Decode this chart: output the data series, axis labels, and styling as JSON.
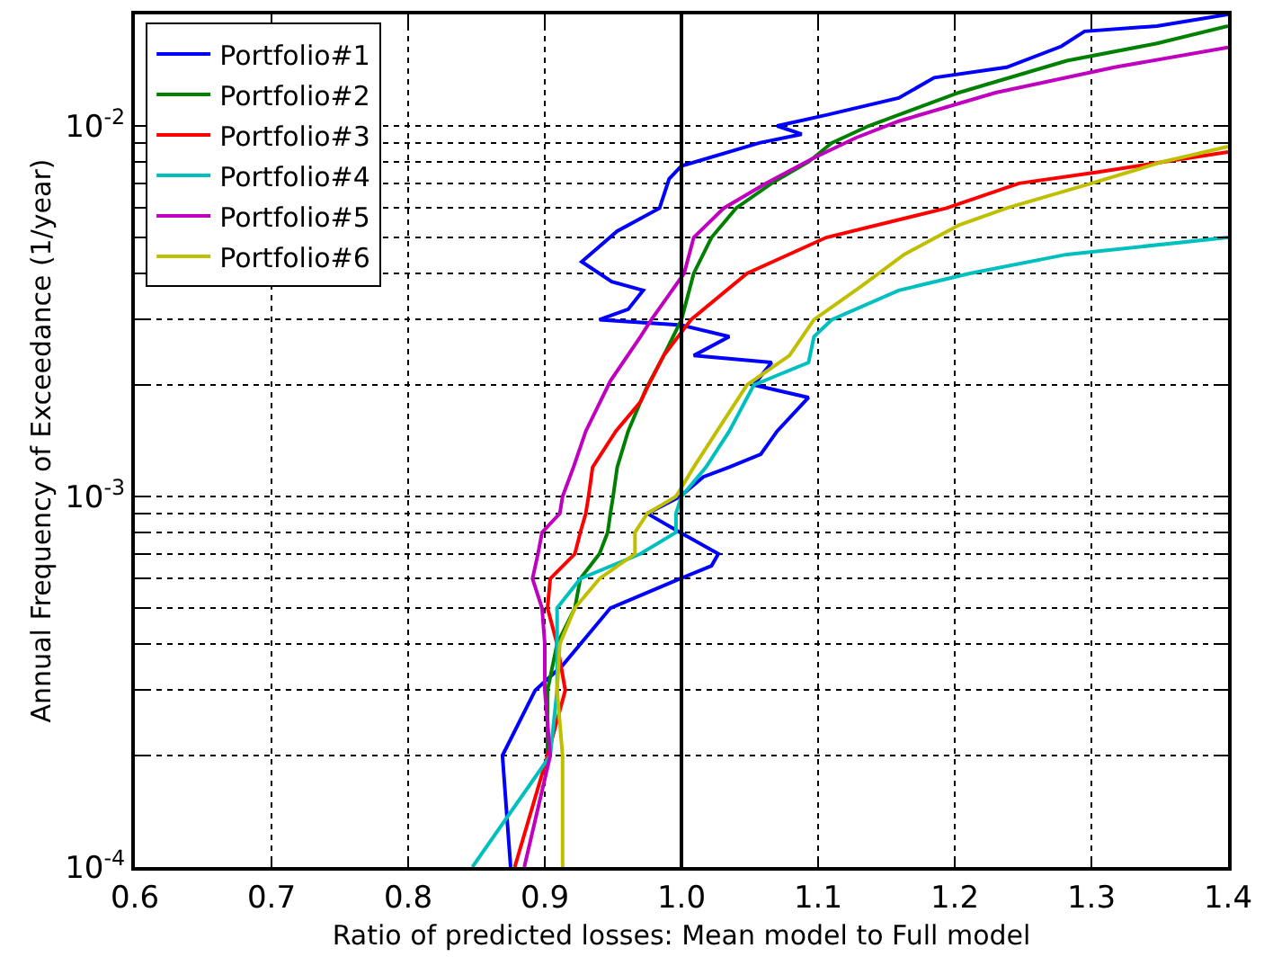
{
  "chart_data": {
    "type": "line",
    "xlabel": "Ratio of predicted losses: Mean model to Full model",
    "ylabel": "Annual Frequency of Exceedance (1/year)",
    "xlim": [
      0.6,
      1.4
    ],
    "xticks": [
      {
        "value": 0.6,
        "label": "0.6"
      },
      {
        "value": 0.7,
        "label": "0.7"
      },
      {
        "value": 0.8,
        "label": "0.8"
      },
      {
        "value": 0.9,
        "label": "0.9"
      },
      {
        "value": 1.0,
        "label": "1.0"
      },
      {
        "value": 1.1,
        "label": "1.1"
      },
      {
        "value": 1.2,
        "label": "1.2"
      },
      {
        "value": 1.3,
        "label": "1.3"
      },
      {
        "value": 1.4,
        "label": "1.4"
      }
    ],
    "ylim": [
      0.0001,
      0.02
    ],
    "log": "y",
    "yticks": [
      {
        "value": 0.0001,
        "label": "10$^{-4}$"
      },
      {
        "value": 0.0002,
        "label": null
      },
      {
        "value": 0.0003,
        "label": null
      },
      {
        "value": 0.0004,
        "label": null
      },
      {
        "value": 0.0005,
        "label": null
      },
      {
        "value": 0.0006,
        "label": null
      },
      {
        "value": 0.0007,
        "label": null
      },
      {
        "value": 0.0008,
        "label": null
      },
      {
        "value": 0.0009,
        "label": null
      },
      {
        "value": 0.001,
        "label": "10$^{-3}$"
      },
      {
        "value": 0.002,
        "label": null
      },
      {
        "value": 0.003,
        "label": null
      },
      {
        "value": 0.004,
        "label": null
      },
      {
        "value": 0.005,
        "label": null
      },
      {
        "value": 0.006,
        "label": null
      },
      {
        "value": 0.007,
        "label": null
      },
      {
        "value": 0.008,
        "label": null
      },
      {
        "value": 0.009,
        "label": null
      },
      {
        "value": 0.01,
        "label": "10$^{-2}$"
      }
    ],
    "grid": true,
    "legend": "top left",
    "marker": "none",
    "line_style": "solid",
    "ref_lines": [
      {
        "axis": "x",
        "value": 1.0,
        "color": "#000000",
        "line_style": "solid"
      }
    ],
    "series": [
      {
        "name": "Portfolio#1",
        "color": "#0000ff",
        "x": [
          0.875,
          0.869,
          0.893,
          0.913,
          0.948,
          0.999,
          1.022,
          1.027,
          0.999,
          0.975,
          0.999,
          1.016,
          1.035,
          1.058,
          1.07,
          1.093,
          1.053,
          1.066,
          1.009,
          1.035,
          1.0,
          0.94,
          0.961,
          0.972,
          0.949,
          0.927,
          0.953,
          0.984,
          0.991,
          1.0,
          1.057,
          1.088,
          1.07,
          1.106,
          1.159,
          1.185,
          1.238,
          1.278,
          1.295,
          1.348,
          1.4
        ],
        "values": [
          0.0001,
          0.0002,
          0.0003,
          0.00035,
          0.0005,
          0.0006,
          0.00065,
          0.0007,
          0.0008,
          0.0009,
          0.001,
          0.00113,
          0.0012,
          0.0013,
          0.0015,
          0.00185,
          0.002,
          0.0023,
          0.0024,
          0.0027,
          0.0029,
          0.003,
          0.0032,
          0.0036,
          0.0038,
          0.0043,
          0.0052,
          0.006,
          0.0072,
          0.0078,
          0.009,
          0.0095,
          0.01,
          0.0107,
          0.0119,
          0.0135,
          0.0144,
          0.0164,
          0.018,
          0.0186,
          0.02
        ]
      },
      {
        "name": "Portfolio#2",
        "color": "#008000",
        "x": [
          0.902,
          0.902,
          0.909,
          0.922,
          0.926,
          0.94,
          0.946,
          0.948,
          0.95,
          0.953,
          0.961,
          0.974,
          0.987,
          1.0,
          1.009,
          1.022,
          1.04,
          1.066,
          1.093,
          1.11,
          1.137,
          1.203,
          1.282,
          1.348,
          1.4
        ],
        "values": [
          0.0002,
          0.0003,
          0.0004,
          0.0005,
          0.0006,
          0.0007,
          0.0008,
          0.0009,
          0.001,
          0.0012,
          0.0015,
          0.00195,
          0.0024,
          0.003,
          0.004,
          0.005,
          0.006,
          0.007,
          0.008,
          0.009,
          0.01,
          0.0123,
          0.015,
          0.0167,
          0.0186
        ]
      },
      {
        "name": "Portfolio#3",
        "color": "#ff0000",
        "x": [
          0.878,
          0.902,
          0.915,
          0.909,
          0.902,
          0.904,
          0.922,
          0.926,
          0.93,
          0.932,
          0.935,
          0.952,
          0.97,
          0.976,
          0.987,
          1.007,
          1.048,
          1.106,
          1.194,
          1.247,
          1.304,
          1.4
        ],
        "values": [
          0.0001,
          0.0002,
          0.0003,
          0.0004,
          0.0005,
          0.0006,
          0.0007,
          0.0008,
          0.0009,
          0.001,
          0.0012,
          0.0015,
          0.0018,
          0.002,
          0.0024,
          0.003,
          0.004,
          0.005,
          0.006,
          0.007,
          0.0075,
          0.0085
        ]
      },
      {
        "name": "Portfolio#4",
        "color": "#00bfbf",
        "x": [
          0.847,
          0.904,
          0.909,
          0.909,
          0.909,
          0.926,
          0.97,
          0.996,
          0.996,
          1.0,
          1.018,
          1.035,
          1.053,
          1.093,
          1.097,
          1.11,
          1.159,
          1.211,
          1.282,
          1.4
        ],
        "values": [
          0.0001,
          0.0002,
          0.0003,
          0.0004,
          0.0005,
          0.0006,
          0.0007,
          0.0008,
          0.0009,
          0.001,
          0.0012,
          0.0015,
          0.002,
          0.0023,
          0.0027,
          0.003,
          0.0036,
          0.004,
          0.0045,
          0.005
        ]
      },
      {
        "name": "Portfolio#5",
        "color": "#bf00bf",
        "x": [
          0.885,
          0.904,
          0.9,
          0.9,
          0.898,
          0.891,
          0.895,
          0.898,
          0.911,
          0.913,
          0.921,
          0.93,
          0.948,
          0.97,
          0.978,
          1.002,
          1.009,
          1.031,
          1.062,
          1.097,
          1.128,
          1.159,
          1.23,
          1.317,
          1.4
        ],
        "values": [
          0.0001,
          0.0002,
          0.0003,
          0.0004,
          0.0005,
          0.0006,
          0.0007,
          0.0008,
          0.0009,
          0.001,
          0.0012,
          0.0015,
          0.00205,
          0.0027,
          0.003,
          0.004,
          0.005,
          0.006,
          0.007,
          0.0082,
          0.0093,
          0.0103,
          0.0123,
          0.0144,
          0.0163
        ]
      },
      {
        "name": "Portfolio#6",
        "color": "#bfbf00",
        "x": [
          0.913,
          0.913,
          0.909,
          0.911,
          0.922,
          0.94,
          0.966,
          0.966,
          0.975,
          0.996,
          1.009,
          1.026,
          1.048,
          1.079,
          1.097,
          1.132,
          1.163,
          1.203,
          1.238,
          1.3,
          1.352,
          1.4
        ],
        "values": [
          0.0001,
          0.0002,
          0.0003,
          0.0004,
          0.0005,
          0.0006,
          0.0007,
          0.0008,
          0.0009,
          0.001,
          0.0012,
          0.0015,
          0.002,
          0.0024,
          0.003,
          0.0037,
          0.0045,
          0.0054,
          0.006,
          0.007,
          0.008,
          0.0088
        ]
      }
    ]
  }
}
